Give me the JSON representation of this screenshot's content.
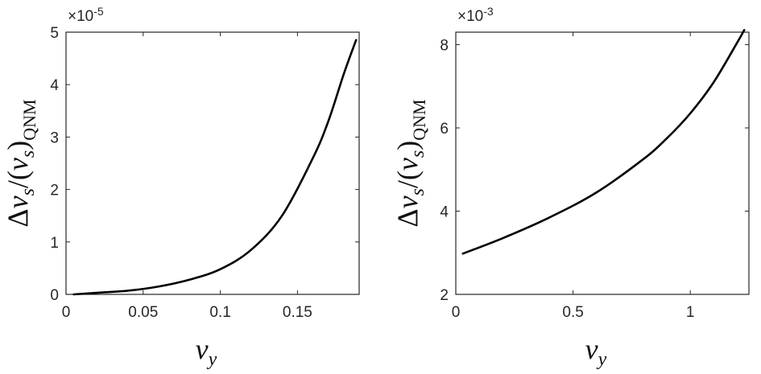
{
  "chart_data": [
    {
      "type": "line",
      "title": "",
      "xlabel": "v_y",
      "ylabel": "Δv_s/(v_s)_QNM",
      "ylabel_parts": {
        "delta": "Δ",
        "v": "v",
        "s": "s",
        "slash_open": "/(",
        "close": ")",
        "sub": "QNM"
      },
      "xlabel_parts": {
        "v": "v",
        "y": "y"
      },
      "y_multiplier": {
        "base": "×10",
        "exponent": "-5"
      },
      "xlim": [
        0,
        0.19
      ],
      "ylim": [
        0,
        5
      ],
      "xticks": [
        0,
        0.05,
        0.1,
        0.15
      ],
      "xtick_labels": [
        "0",
        "0.05",
        "0.1",
        "0.15"
      ],
      "yticks": [
        0,
        1,
        2,
        3,
        4,
        5
      ],
      "ytick_labels": [
        "0",
        "1",
        "2",
        "3",
        "4",
        "5"
      ],
      "grid": false,
      "series": [
        {
          "x": [
            0.005,
            0.02,
            0.04,
            0.06,
            0.08,
            0.1,
            0.12,
            0.14,
            0.16,
            0.17,
            0.18,
            0.188
          ],
          "y": [
            0.0,
            0.03,
            0.07,
            0.15,
            0.28,
            0.48,
            0.85,
            1.5,
            2.6,
            3.3,
            4.2,
            4.85
          ]
        }
      ]
    },
    {
      "type": "line",
      "title": "",
      "xlabel": "v_y",
      "ylabel": "Δv_s/(v_s)_QNM",
      "ylabel_parts": {
        "delta": "Δ",
        "v": "v",
        "s": "s",
        "slash_open": "/(",
        "close": ")",
        "sub": "QNM"
      },
      "xlabel_parts": {
        "v": "v",
        "y": "y"
      },
      "y_multiplier": {
        "base": "×10",
        "exponent": "-3"
      },
      "xlim": [
        0,
        1.25
      ],
      "ylim": [
        2,
        8.3
      ],
      "xticks": [
        0,
        0.5,
        1
      ],
      "xtick_labels": [
        "0",
        "0.5",
        "1"
      ],
      "yticks": [
        2,
        4,
        6,
        8
      ],
      "ytick_labels": [
        "2",
        "4",
        "6",
        "8"
      ],
      "grid": false,
      "series": [
        {
          "x": [
            0.03,
            0.2,
            0.4,
            0.6,
            0.8,
            0.9,
            1.0,
            1.1,
            1.2,
            1.23
          ],
          "y": [
            2.98,
            3.35,
            3.85,
            4.45,
            5.25,
            5.75,
            6.35,
            7.1,
            8.05,
            8.35
          ]
        }
      ]
    }
  ]
}
